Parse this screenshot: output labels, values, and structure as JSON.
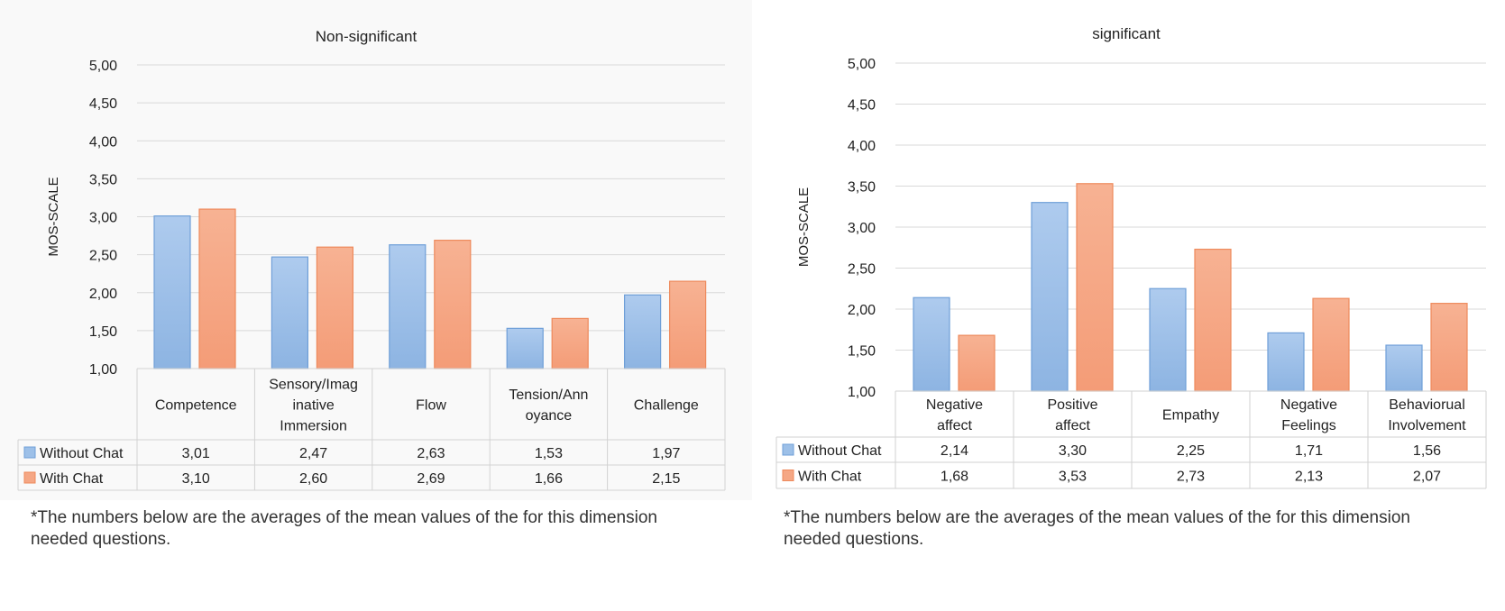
{
  "charts": {
    "left": {
      "footnote": "*The numbers below are the averages of the mean values of the for this dimension needed questions."
    },
    "right": {
      "footnote": "*The numbers below are the averages of the mean values of the for this dimension needed questions."
    }
  },
  "chart_data": [
    {
      "type": "bar",
      "title": "Non-significant",
      "ylabel": "MOS-SCALE",
      "xlabel": "",
      "ylim": [
        1,
        5
      ],
      "ytick_step": 0.5,
      "yticks": [
        "1,00",
        "1,50",
        "2,00",
        "2,50",
        "3,00",
        "3,50",
        "4,00",
        "4,50",
        "5,00"
      ],
      "grid": true,
      "legend": "data-table",
      "categories": [
        [
          "Competence"
        ],
        [
          "Sensory/Imag",
          "inative",
          "Immersion"
        ],
        [
          "Flow"
        ],
        [
          "Tension/Ann",
          "oyance"
        ],
        [
          "Challenge"
        ]
      ],
      "series": [
        {
          "name": "Without Chat",
          "color": "#9dc0e8",
          "values": [
            3.01,
            2.47,
            2.63,
            1.53,
            1.97
          ],
          "labels": [
            "3,01",
            "2,47",
            "2,63",
            "1,53",
            "1,97"
          ]
        },
        {
          "name": "With Chat",
          "color": "#f5a785",
          "values": [
            3.1,
            2.6,
            2.69,
            1.66,
            2.15
          ],
          "labels": [
            "3,10",
            "2,60",
            "2,69",
            "1,66",
            "2,15"
          ]
        }
      ]
    },
    {
      "type": "bar",
      "title": "significant",
      "ylabel": "MOS-SCALE",
      "xlabel": "",
      "ylim": [
        1,
        5
      ],
      "ytick_step": 0.5,
      "yticks": [
        "1,00",
        "1,50",
        "2,00",
        "2,50",
        "3,00",
        "3,50",
        "4,00",
        "4,50",
        "5,00"
      ],
      "grid": true,
      "legend": "data-table",
      "categories": [
        [
          "Negative",
          "affect"
        ],
        [
          "Positive",
          "affect"
        ],
        [
          "Empathy"
        ],
        [
          "Negative",
          "Feelings"
        ],
        [
          "Behaviorual",
          "Involvement"
        ]
      ],
      "series": [
        {
          "name": "Without Chat",
          "color": "#9dc0e8",
          "values": [
            2.14,
            3.3,
            2.25,
            1.71,
            1.56
          ],
          "labels": [
            "2,14",
            "3,30",
            "2,25",
            "1,71",
            "1,56"
          ]
        },
        {
          "name": "With Chat",
          "color": "#f5a785",
          "values": [
            1.68,
            3.53,
            2.73,
            2.13,
            2.07
          ],
          "labels": [
            "1,68",
            "3,53",
            "2,73",
            "2,13",
            "2,07"
          ]
        }
      ]
    }
  ]
}
